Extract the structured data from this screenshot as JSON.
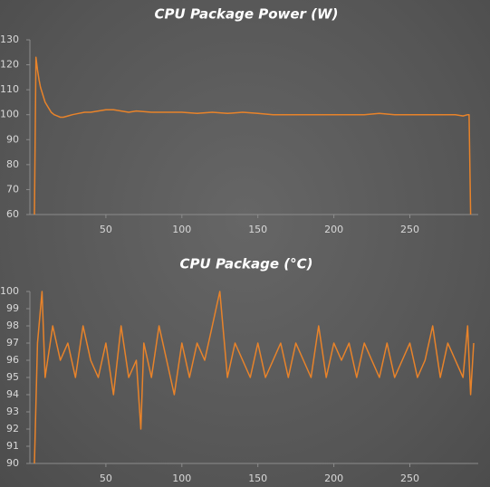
{
  "chart_data": [
    {
      "type": "line",
      "title": "CPU Package Power (W)",
      "x": [
        3,
        4,
        5,
        6,
        7,
        8,
        10,
        12,
        14,
        16,
        18,
        20,
        22,
        25,
        28,
        32,
        36,
        40,
        45,
        50,
        55,
        60,
        65,
        70,
        80,
        90,
        100,
        110,
        120,
        130,
        140,
        150,
        160,
        170,
        180,
        190,
        200,
        210,
        220,
        230,
        240,
        250,
        260,
        270,
        280,
        285,
        288,
        289,
        290
      ],
      "series": [
        {
          "name": "CPU Package Power",
          "color": "#e8832a",
          "values": [
            60,
            123,
            118,
            114,
            111,
            109,
            105,
            103,
            101,
            100,
            99.5,
            99,
            99,
            99.5,
            100,
            100.5,
            101,
            101,
            101.5,
            102,
            102,
            101.5,
            101,
            101.5,
            101,
            101,
            101,
            100.5,
            101,
            100.5,
            101,
            100.5,
            100,
            100,
            100,
            100,
            100,
            100,
            100,
            100.5,
            100,
            100,
            100,
            100,
            100,
            99.5,
            100,
            100,
            60
          ]
        }
      ],
      "xlim": [
        0,
        295
      ],
      "xticks": [
        50,
        100,
        150,
        200,
        250
      ],
      "ylim": [
        60,
        130
      ],
      "yticks": [
        60,
        70,
        80,
        90,
        100,
        110,
        120,
        130
      ],
      "grid": false
    },
    {
      "type": "line",
      "title": "CPU Package (°C)",
      "x": [
        3,
        5,
        8,
        10,
        15,
        20,
        25,
        30,
        35,
        40,
        45,
        50,
        55,
        60,
        65,
        70,
        73,
        75,
        80,
        85,
        90,
        95,
        100,
        105,
        110,
        115,
        120,
        125,
        130,
        135,
        140,
        145,
        150,
        155,
        160,
        165,
        170,
        175,
        180,
        185,
        190,
        195,
        200,
        205,
        210,
        215,
        220,
        225,
        230,
        235,
        240,
        245,
        250,
        255,
        260,
        265,
        270,
        275,
        280,
        285,
        288,
        290,
        292
      ],
      "series": [
        {
          "name": "CPU Package",
          "color": "#e8832a",
          "values": [
            90,
            97,
            100,
            95,
            98,
            96,
            97,
            95,
            98,
            96,
            95,
            97,
            94,
            98,
            95,
            96,
            92,
            97,
            95,
            98,
            96,
            94,
            97,
            95,
            97,
            96,
            98,
            100,
            95,
            97,
            96,
            95,
            97,
            95,
            96,
            97,
            95,
            97,
            96,
            95,
            98,
            95,
            97,
            96,
            97,
            95,
            97,
            96,
            95,
            97,
            95,
            96,
            97,
            95,
            96,
            98,
            95,
            97,
            96,
            95,
            98,
            94,
            97
          ]
        }
      ],
      "xlim": [
        0,
        295
      ],
      "xticks": [
        50,
        100,
        150,
        200,
        250
      ],
      "ylim": [
        90,
        100
      ],
      "yticks": [
        90,
        91,
        92,
        93,
        94,
        95,
        96,
        97,
        98,
        99,
        100
      ],
      "grid": false
    }
  ]
}
